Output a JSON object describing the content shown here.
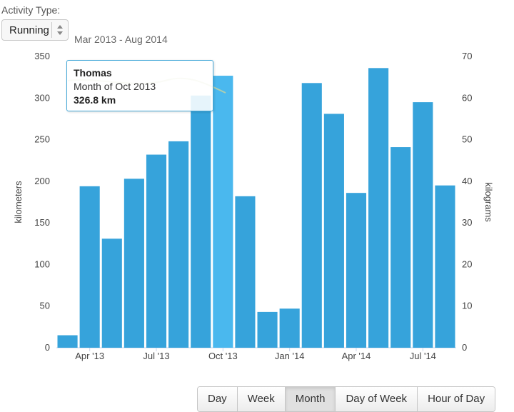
{
  "controls": {
    "activity_label": "Activity Type:",
    "activity_value": "Running",
    "date_range": "Mar 2013 - Aug 2014"
  },
  "tooltip": {
    "name": "Thomas",
    "period": "Month of Oct 2013",
    "value": "326.8 km"
  },
  "buttons": [
    {
      "label": "Day",
      "active": false
    },
    {
      "label": "Week",
      "active": false
    },
    {
      "label": "Month",
      "active": true
    },
    {
      "label": "Day of Week",
      "active": false
    },
    {
      "label": "Hour of Day",
      "active": false
    }
  ],
  "chart_data": {
    "type": "bar",
    "categories": [
      "Mar 2013",
      "Apr 2013",
      "May 2013",
      "Jun 2013",
      "Jul 2013",
      "Aug 2013",
      "Sep 2013",
      "Oct 2013",
      "Nov 2013",
      "Dec 2013",
      "Jan 2014",
      "Feb 2014",
      "Mar 2014",
      "Apr 2014",
      "May 2014",
      "Jun 2014",
      "Jul 2014",
      "Aug 2014"
    ],
    "values": [
      15,
      194,
      131,
      203,
      232,
      248,
      303,
      326.8,
      182,
      43,
      47,
      318,
      281,
      186,
      336,
      241,
      295,
      195
    ],
    "highlight_index": 7,
    "bar_color": "#36a3db",
    "highlight_color": "#4ab8ee",
    "ylabel": "kilometers",
    "ylabel_right": "kilograms",
    "ylim": [
      0,
      350
    ],
    "ylim_right": [
      0,
      70
    ],
    "yticks": [
      "0",
      "50",
      "100",
      "150",
      "200",
      "250",
      "300",
      "350"
    ],
    "yticks_right": [
      "0",
      "10",
      "20",
      "30",
      "40",
      "50",
      "60",
      "70"
    ],
    "xticks": [
      {
        "label": "Apr '13",
        "index": 1
      },
      {
        "label": "Jul '13",
        "index": 4
      },
      {
        "label": "Oct '13",
        "index": 7
      },
      {
        "label": "Jan '14",
        "index": 10
      },
      {
        "label": "Apr '14",
        "index": 13
      },
      {
        "label": "Jul '14",
        "index": 16
      }
    ]
  }
}
